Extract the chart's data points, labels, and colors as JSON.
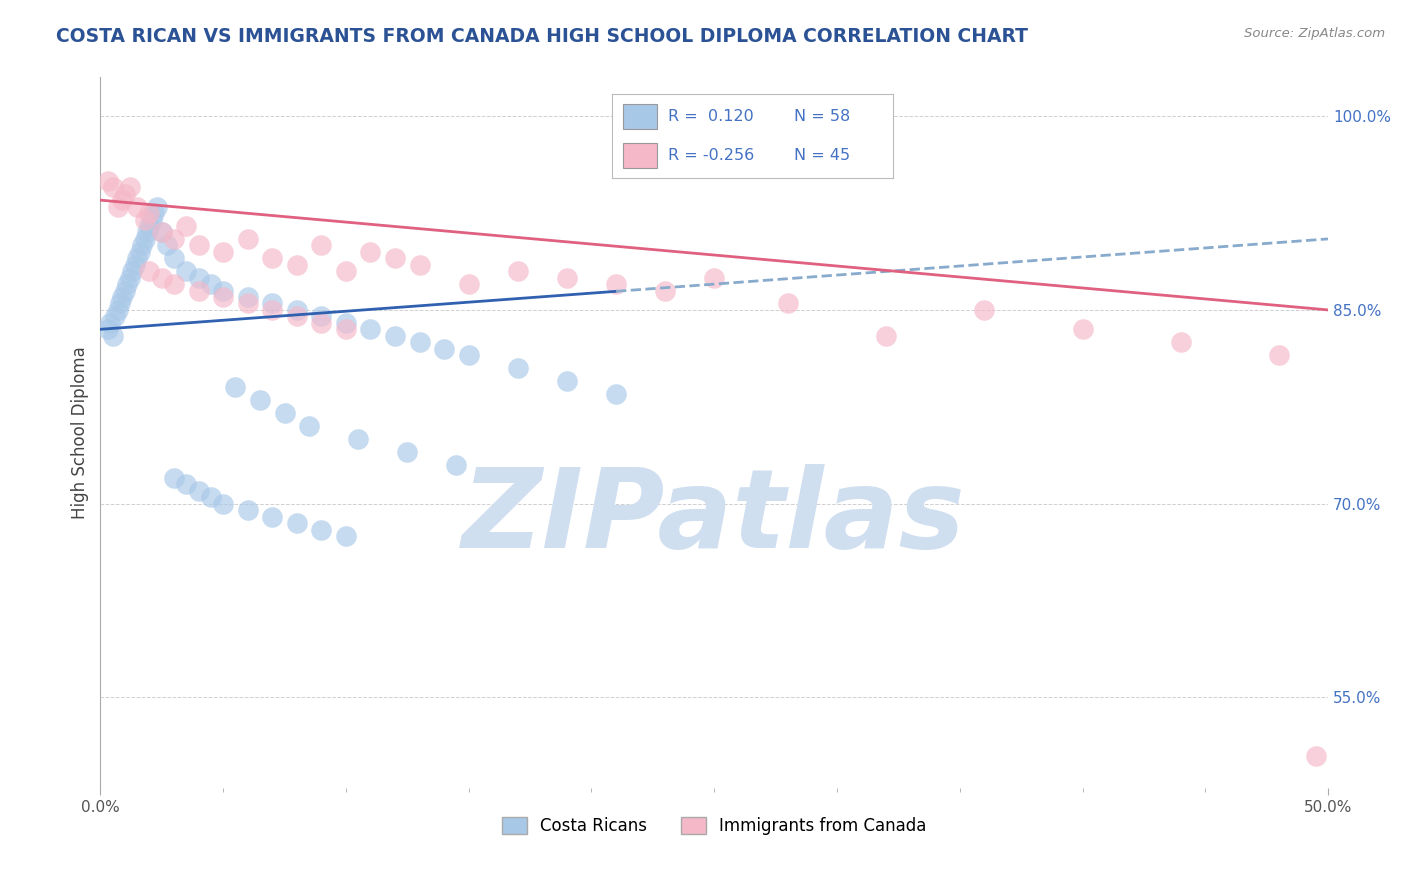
{
  "title": "COSTA RICAN VS IMMIGRANTS FROM CANADA HIGH SCHOOL DIPLOMA CORRELATION CHART",
  "source": "Source: ZipAtlas.com",
  "ylabel": "High School Diploma",
  "xmin": 0.0,
  "xmax": 50.0,
  "ymin": 48.0,
  "ymax": 103.0,
  "yticks": [
    55.0,
    70.0,
    85.0,
    100.0
  ],
  "ytick_labels": [
    "55.0%",
    "70.0%",
    "85.0%",
    "100.0%"
  ],
  "title_color": "#2c5296",
  "axis_color": "#aaaaaa",
  "grid_color": "#d0d0d0",
  "blue_color": "#a8c8e8",
  "blue_line_color": "#3060b0",
  "blue_dash_color": "#88aacc",
  "pink_color": "#f5b8c8",
  "pink_line_color": "#e06080",
  "watermark": "ZIPatlas",
  "watermark_color": "#d0dff0",
  "legend_labels": [
    "Costa Ricans",
    "Immigrants from Canada"
  ],
  "R_blue": 0.12,
  "N_blue": 58,
  "R_pink": -0.256,
  "N_pink": 45,
  "blue_scatter_x": [
    0.3,
    0.4,
    0.5,
    0.6,
    0.7,
    0.8,
    0.9,
    1.0,
    1.1,
    1.2,
    1.3,
    1.4,
    1.5,
    1.6,
    1.7,
    1.8,
    1.9,
    2.0,
    2.1,
    2.2,
    2.3,
    2.5,
    2.7,
    3.0,
    3.5,
    4.0,
    4.5,
    5.0,
    6.0,
    7.0,
    8.0,
    9.0,
    10.0,
    11.0,
    12.0,
    13.0,
    14.0,
    15.0,
    17.0,
    19.0,
    21.0,
    5.5,
    6.5,
    7.5,
    8.5,
    10.5,
    12.5,
    14.5,
    3.0,
    3.5,
    4.0,
    4.5,
    5.0,
    6.0,
    7.0,
    8.0,
    9.0,
    10.0
  ],
  "blue_scatter_y": [
    83.5,
    84.0,
    83.0,
    84.5,
    85.0,
    85.5,
    86.0,
    86.5,
    87.0,
    87.5,
    88.0,
    88.5,
    89.0,
    89.5,
    90.0,
    90.5,
    91.0,
    91.5,
    92.0,
    92.5,
    93.0,
    91.0,
    90.0,
    89.0,
    88.0,
    87.5,
    87.0,
    86.5,
    86.0,
    85.5,
    85.0,
    84.5,
    84.0,
    83.5,
    83.0,
    82.5,
    82.0,
    81.5,
    80.5,
    79.5,
    78.5,
    79.0,
    78.0,
    77.0,
    76.0,
    75.0,
    74.0,
    73.0,
    72.0,
    71.5,
    71.0,
    70.5,
    70.0,
    69.5,
    69.0,
    68.5,
    68.0,
    67.5
  ],
  "pink_scatter_x": [
    0.3,
    0.5,
    0.7,
    0.9,
    1.0,
    1.2,
    1.5,
    1.8,
    2.0,
    2.5,
    3.0,
    3.5,
    4.0,
    5.0,
    6.0,
    7.0,
    8.0,
    9.0,
    10.0,
    11.0,
    12.0,
    13.0,
    15.0,
    17.0,
    19.0,
    21.0,
    23.0,
    25.0,
    28.0,
    32.0,
    36.0,
    40.0,
    44.0,
    48.0,
    49.5,
    2.0,
    2.5,
    3.0,
    4.0,
    5.0,
    6.0,
    7.0,
    8.0,
    9.0,
    10.0
  ],
  "pink_scatter_y": [
    95.0,
    94.5,
    93.0,
    93.5,
    94.0,
    94.5,
    93.0,
    92.0,
    92.5,
    91.0,
    90.5,
    91.5,
    90.0,
    89.5,
    90.5,
    89.0,
    88.5,
    90.0,
    88.0,
    89.5,
    89.0,
    88.5,
    87.0,
    88.0,
    87.5,
    87.0,
    86.5,
    87.5,
    85.5,
    83.0,
    85.0,
    83.5,
    82.5,
    81.5,
    50.5,
    88.0,
    87.5,
    87.0,
    86.5,
    86.0,
    85.5,
    85.0,
    84.5,
    84.0,
    83.5
  ]
}
